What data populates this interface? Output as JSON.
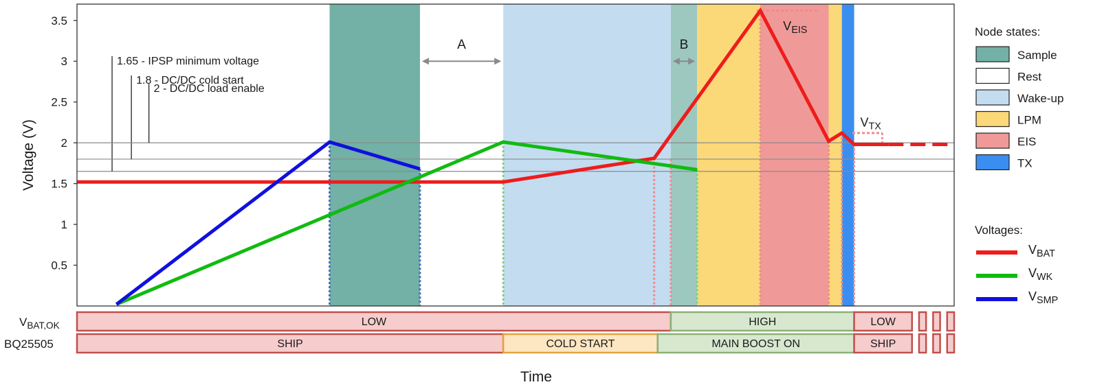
{
  "chart_data": {
    "type": "line",
    "xlabel": "Time",
    "ylabel": "Voltage (V)",
    "xlim": [
      0,
      100
    ],
    "ylim": [
      0,
      3.7
    ],
    "y_ticks": [
      "0.5",
      "1",
      "1.5",
      "2",
      "2.5",
      "3",
      "3.5"
    ],
    "y_tick_values": [
      0.5,
      1,
      1.5,
      2,
      2.5,
      3,
      3.5
    ],
    "thresholds": [
      {
        "value": 1.65,
        "label": "1.65 - IPSP minimum voltage",
        "x": 4
      },
      {
        "value": 1.8,
        "label": "1.8 - DC/DC cold start",
        "x": 6.2
      },
      {
        "value": 2.0,
        "label": "2 - DC/DC load enable",
        "x": 8.2
      }
    ],
    "state_regions": [
      {
        "state": "Sample",
        "x0": 28.8,
        "x1": 39.1
      },
      {
        "state": "Wake-up",
        "x0": 48.6,
        "x1": 67.7
      },
      {
        "state": "Sample",
        "x0": 67.7,
        "x1": 70.7
      },
      {
        "state": "LPM",
        "x0": 70.7,
        "x1": 77.9
      },
      {
        "state": "EIS",
        "x0": 77.9,
        "x1": 85.7
      },
      {
        "state": "LPM",
        "x0": 85.7,
        "x1": 87.2
      },
      {
        "state": "TX",
        "x0": 87.2,
        "x1": 88.6
      }
    ],
    "series": [
      {
        "name": "VBAT",
        "color": "#ee1c1c",
        "x": [
          0,
          48.6,
          65.8,
          77.9,
          85.7,
          87.2,
          88.6,
          100
        ],
        "y": [
          1.52,
          1.52,
          1.81,
          3.62,
          2.02,
          2.12,
          1.98,
          1.98
        ],
        "dashed_after_x": 92.5
      },
      {
        "name": "VWK",
        "color": "#10bb10",
        "x": [
          4.5,
          48.6,
          70.7
        ],
        "y": [
          0.02,
          2.01,
          1.67
        ]
      },
      {
        "name": "VSMP",
        "color": "#1010dd",
        "x": [
          4.5,
          28.8,
          39.1
        ],
        "y": [
          0.02,
          2.01,
          1.68
        ]
      }
    ],
    "annotations": [
      {
        "label": "A",
        "x0": 39.1,
        "x1": 48.6,
        "y": 3.0
      },
      {
        "label": "B",
        "x0": 67.7,
        "x1": 70.7,
        "y": 3.0
      },
      {
        "label": "V",
        "sub": "EIS",
        "x": 80.5,
        "y": 3.38,
        "ref_y": 3.62,
        "ref_x0": 77.5,
        "ref_x1": 84.6
      },
      {
        "label": "V",
        "sub": "TX",
        "x": 89.3,
        "y": 2.2,
        "ref_y": 2.12,
        "ref_x0": 88.4,
        "ref_x1": 91.8
      }
    ],
    "state_bars": [
      {
        "label": "V",
        "sub": "BAT,OK",
        "segments": [
          {
            "text": "LOW",
            "x0": 0,
            "x1": 67.7,
            "kind": "red"
          },
          {
            "text": "HIGH",
            "x0": 67.7,
            "x1": 88.6,
            "kind": "green"
          },
          {
            "text": "LOW",
            "x0": 88.6,
            "x1": 95.2,
            "kind": "red"
          },
          {
            "text": "",
            "x0": 96.0,
            "x1": 96.8,
            "kind": "red"
          },
          {
            "text": "",
            "x0": 97.6,
            "x1": 98.4,
            "kind": "red"
          },
          {
            "text": "",
            "x0": 99.2,
            "x1": 100,
            "kind": "red"
          }
        ]
      },
      {
        "label": "BQ25505",
        "sub": "",
        "segments": [
          {
            "text": "SHIP",
            "x0": 0,
            "x1": 48.6,
            "kind": "red"
          },
          {
            "text": "COLD START",
            "x0": 48.6,
            "x1": 66.2,
            "kind": "orange"
          },
          {
            "text": "MAIN BOOST ON",
            "x0": 66.2,
            "x1": 88.6,
            "kind": "green"
          },
          {
            "text": "SHIP",
            "x0": 88.6,
            "x1": 95.2,
            "kind": "red"
          },
          {
            "text": "",
            "x0": 96.0,
            "x1": 96.8,
            "kind": "red"
          },
          {
            "text": "",
            "x0": 97.6,
            "x1": 98.4,
            "kind": "red"
          },
          {
            "text": "",
            "x0": 99.2,
            "x1": 100,
            "kind": "red"
          }
        ]
      }
    ],
    "legend_states_title": "Node states:",
    "legend_states": [
      {
        "label": "Sample",
        "color": "#73b0a5"
      },
      {
        "label": "Rest",
        "color": "#ffffff"
      },
      {
        "label": "Wake-up",
        "color": "#c3dcf0"
      },
      {
        "label": "LPM",
        "color": "#fbd878"
      },
      {
        "label": "EIS",
        "color": "#ef9a98"
      },
      {
        "label": "TX",
        "color": "#3a8ef0"
      }
    ],
    "legend_voltages_title": "Voltages:",
    "legend_voltages": [
      {
        "label": "V",
        "sub": "BAT",
        "color": "#ee1c1c"
      },
      {
        "label": "V",
        "sub": "WK",
        "color": "#10bb10"
      },
      {
        "label": "V",
        "sub": "SMP",
        "color": "#1010dd"
      }
    ]
  }
}
